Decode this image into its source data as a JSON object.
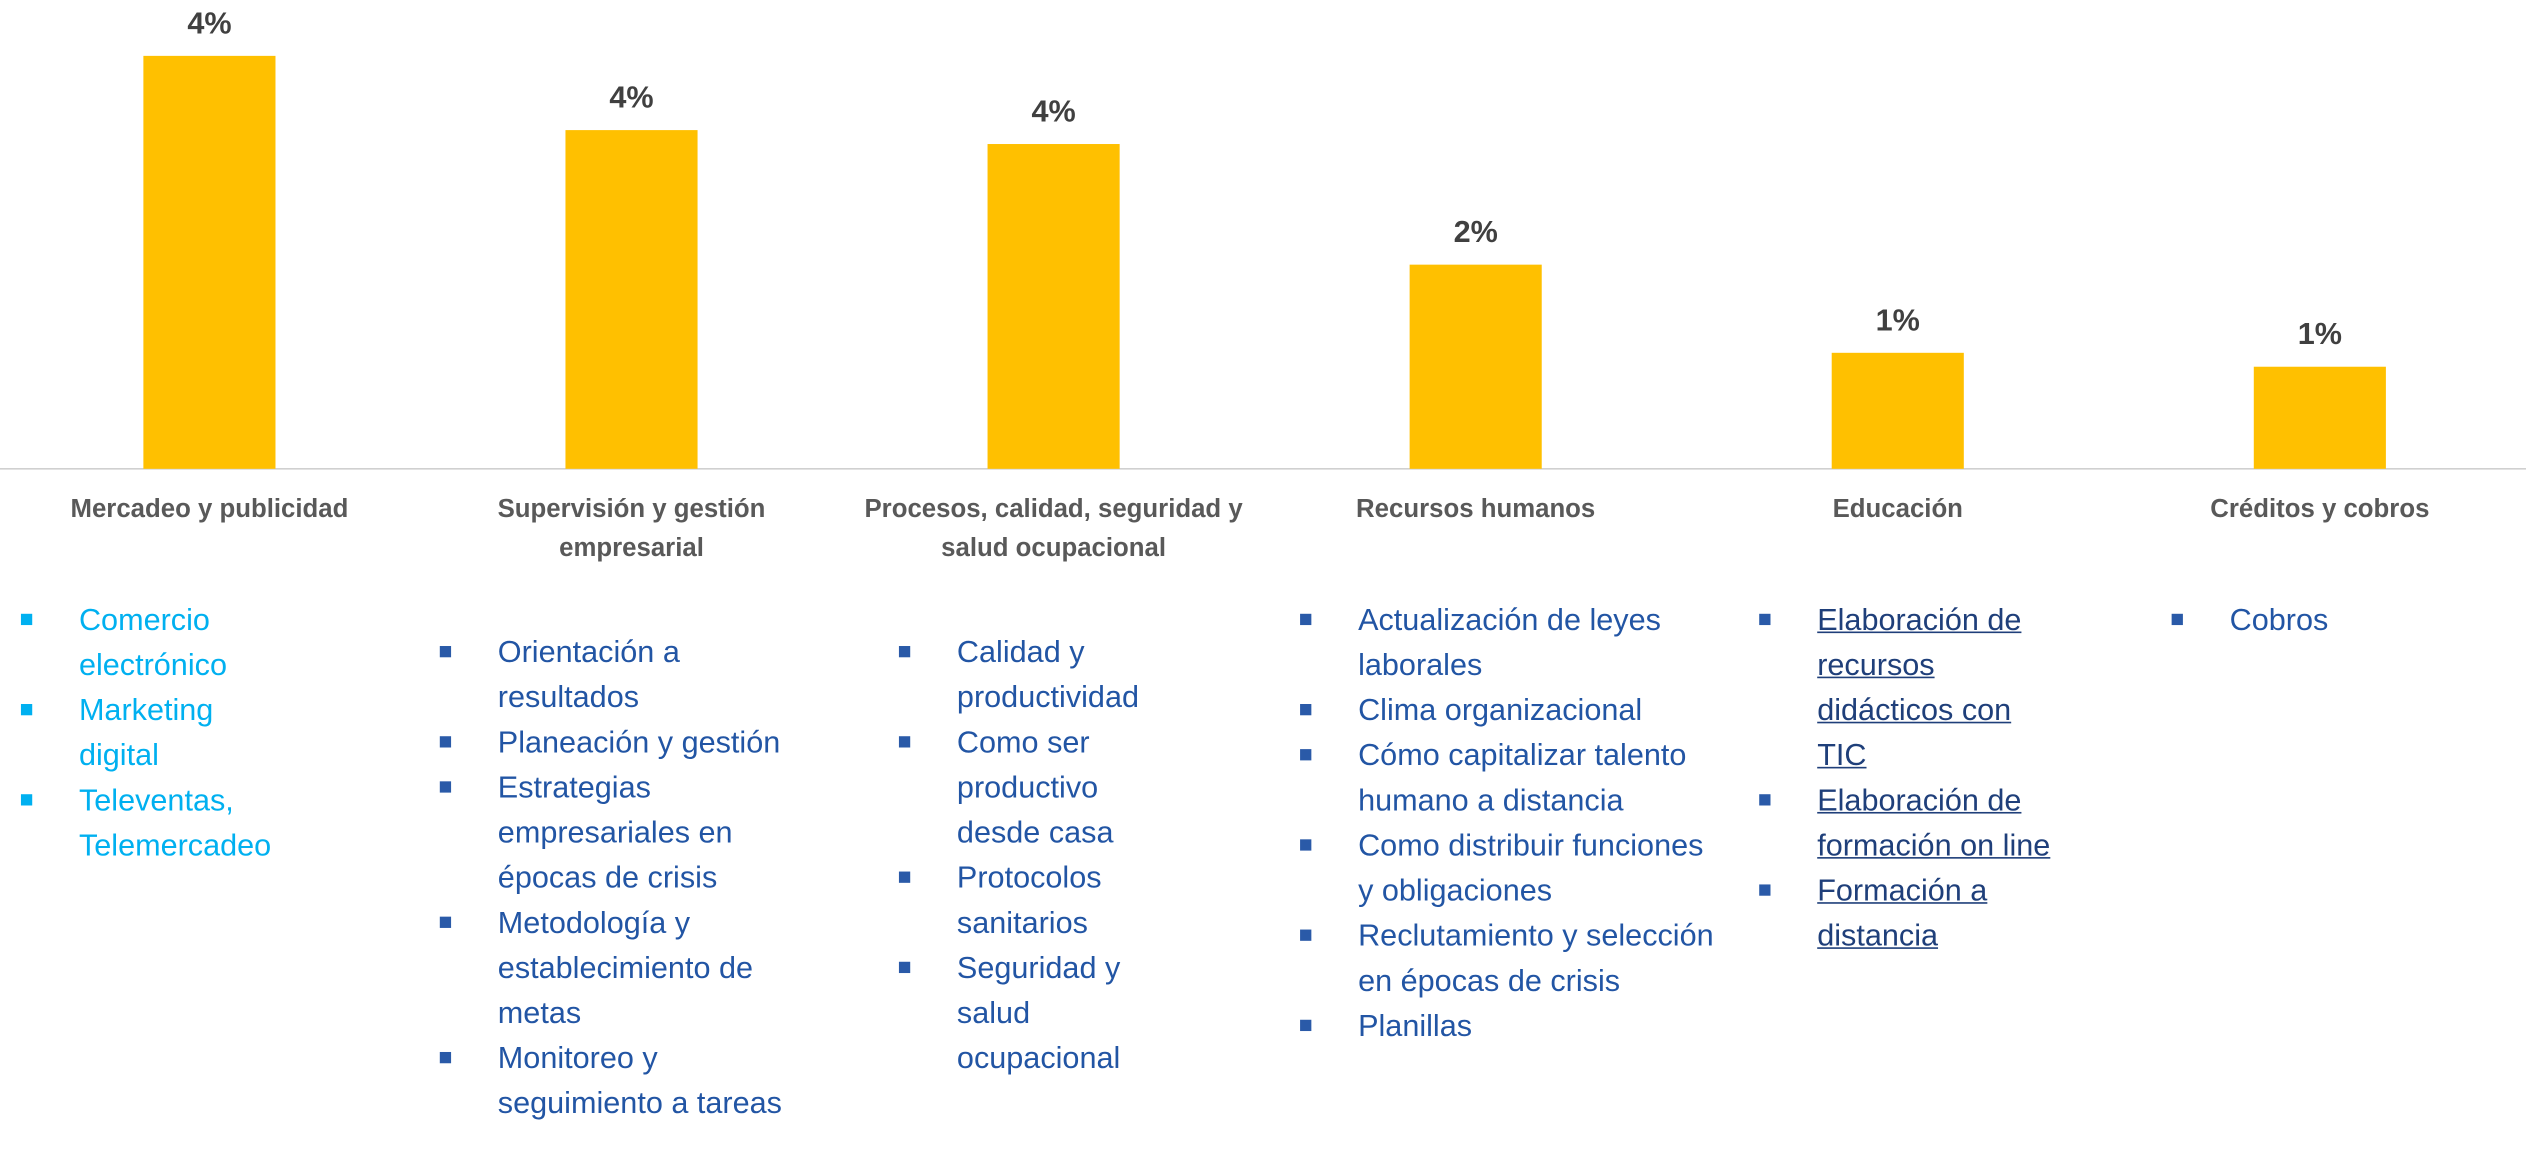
{
  "chart_data": {
    "type": "bar",
    "categories": [
      "Mercadeo y publicidad",
      "Supervisión y gestión empresarial",
      "Procesos, calidad, seguridad y salud ocupacional",
      "Recursos humanos",
      "Educación",
      "Créditos y cobros"
    ],
    "values": [
      4.45,
      3.65,
      3.5,
      2.2,
      1.25,
      1.1
    ],
    "value_labels": [
      "4%",
      "4%",
      "4%",
      "2%",
      "1%",
      "1%"
    ],
    "color": "#ffc000",
    "ylim": [
      0,
      5
    ]
  },
  "topics": [
    [
      "Comercio electrónico",
      "Marketing digital",
      "Televentas, Telemercadeo"
    ],
    [
      "Orientación a resultados",
      "Planeación y gestión",
      "Estrategias empresariales en épocas de crisis",
      "Metodología y establecimiento de metas",
      "Monitoreo y seguimiento a tareas"
    ],
    [
      "Calidad y productividad",
      "Como ser productivo desde casa",
      "Protocolos sanitarios",
      "Seguridad y salud ocupacional"
    ],
    [
      "Actualización de leyes laborales",
      "Clima organizacional",
      "Cómo capitalizar talento humano a distancia",
      "Como distribuir funciones y obligaciones",
      "Reclutamiento y selección en épocas de crisis",
      "Planillas"
    ],
    [
      "Elaboración de recursos didácticos con TIC",
      "Elaboración de formación on line",
      "Formación a distancia"
    ],
    [
      "Cobros"
    ]
  ]
}
